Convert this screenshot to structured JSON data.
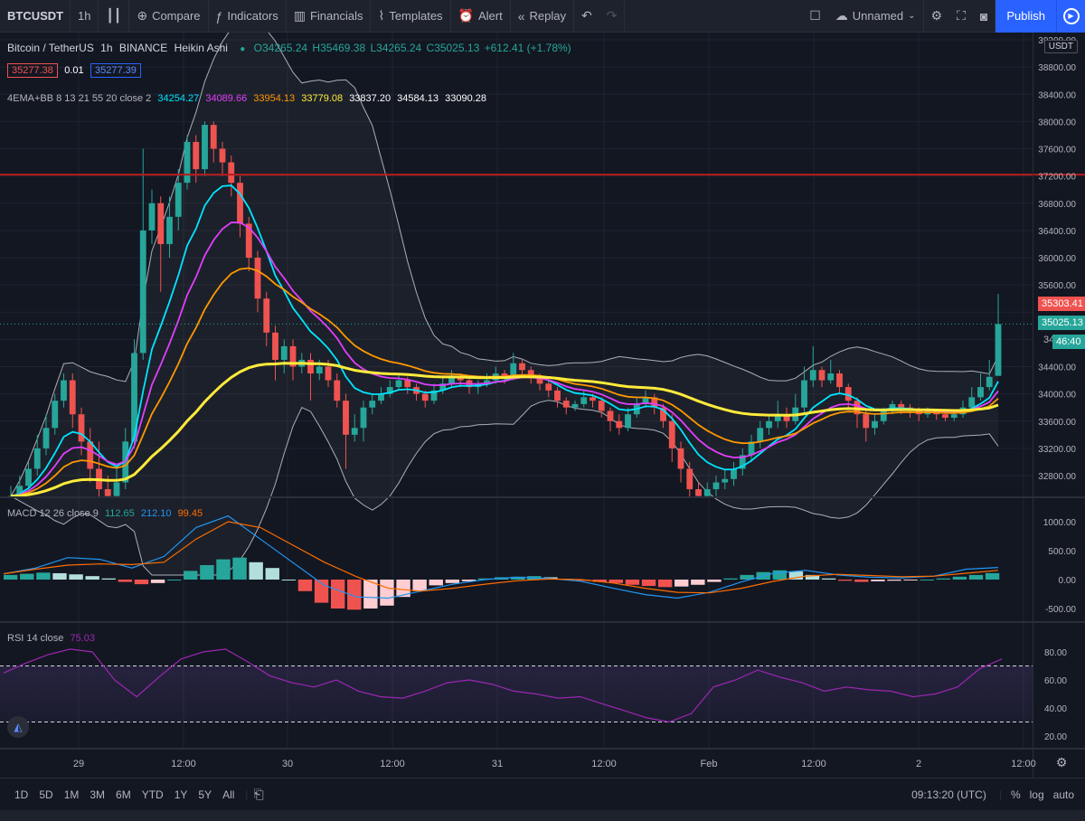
{
  "toolbar": {
    "symbol": "BTCUSDT",
    "interval": "1h",
    "compare": "Compare",
    "indicators": "Indicators",
    "financials": "Financials",
    "templates": "Templates",
    "alert": "Alert",
    "replay": "Replay",
    "layout_name": "Unnamed",
    "publish": "Publish"
  },
  "legend": {
    "title": "Bitcoin / TetherUS",
    "interval": "1h",
    "exchange": "BINANCE",
    "chart_style": "Heikin Ashi",
    "open": "O34265.24",
    "high": "H35469.38",
    "low": "L34265.24",
    "close": "C35025.13",
    "change": "+612.41 (+1.78%)",
    "bid": "35277.38",
    "spread": "0.01",
    "ask": "35277.39",
    "ema_label": "4EMA+BB 8 13 21 55 20 close 2",
    "ema_values": [
      "34254.27",
      "34089.66",
      "33954.13",
      "33779.08",
      "33837.20",
      "34584.13",
      "33090.28"
    ],
    "macd_label": "MACD 12 26 close 9",
    "macd_values": [
      "112.65",
      "212.10",
      "99.45"
    ],
    "rsi_label": "RSI 14 close",
    "rsi_value": "75.03"
  },
  "price_axis": {
    "currency": "USDT",
    "ticks": [
      "39200.00",
      "38800.00",
      "38400.00",
      "38000.00",
      "37600.00",
      "37200.00",
      "36800.00",
      "36400.00",
      "36000.00",
      "35600.00",
      "34400.00",
      "34000.00",
      "33600.00",
      "33200.00",
      "32800.00"
    ],
    "tag_high": "35303.41",
    "tag_last": "35025.13",
    "tag_countdown": "46:40",
    "tag_partial": "34"
  },
  "macd_axis": [
    "1000.00",
    "500.00",
    "0.00",
    "-500.00"
  ],
  "rsi_axis": [
    "80.00",
    "60.00",
    "40.00",
    "20.00"
  ],
  "time_axis": [
    "29",
    "12:00",
    "30",
    "12:00",
    "31",
    "12:00",
    "Feb",
    "12:00",
    "2",
    "12:00"
  ],
  "bottom": {
    "ranges": [
      "1D",
      "5D",
      "1M",
      "3M",
      "6M",
      "YTD",
      "1Y",
      "5Y",
      "All"
    ],
    "clock": "09:13:20 (UTC)",
    "percent": "%",
    "log": "log",
    "auto": "auto"
  },
  "colors": {
    "up": "#26a69a",
    "down": "#ef5350",
    "ema8": "#00e5ff",
    "ema13": "#e040fb",
    "ema21": "#ff9800",
    "ema55": "#ffeb3b",
    "bb": "#d1d4dc",
    "hline": "#b71c1c",
    "macd": "#2196f3",
    "signal": "#ff6d00",
    "rsi": "#9c27b0"
  },
  "chart_data": {
    "type": "candlestick",
    "style": "Heikin Ashi",
    "y_range": [
      32400,
      39200
    ],
    "horizontal_line": 37220,
    "last_price": 35025.13,
    "candles": [
      {
        "o": 32350,
        "c": 32500,
        "h": 32650,
        "l": 32200
      },
      {
        "o": 32500,
        "c": 32650,
        "h": 32800,
        "l": 32400
      },
      {
        "o": 32650,
        "c": 32900,
        "h": 33000,
        "l": 32550
      },
      {
        "o": 32900,
        "c": 33200,
        "h": 33400,
        "l": 32800
      },
      {
        "o": 33200,
        "c": 33500,
        "h": 33700,
        "l": 33100
      },
      {
        "o": 33500,
        "c": 33900,
        "h": 34000,
        "l": 33400
      },
      {
        "o": 33900,
        "c": 34200,
        "h": 34300,
        "l": 33800
      },
      {
        "o": 34200,
        "c": 33700,
        "h": 34300,
        "l": 33500
      },
      {
        "o": 33700,
        "c": 33300,
        "h": 33800,
        "l": 33100
      },
      {
        "o": 33300,
        "c": 32900,
        "h": 33500,
        "l": 32700
      },
      {
        "o": 32900,
        "c": 32600,
        "h": 33300,
        "l": 32400
      },
      {
        "o": 32600,
        "c": 32500,
        "h": 32800,
        "l": 32300
      },
      {
        "o": 32500,
        "c": 32700,
        "h": 32900,
        "l": 32400
      },
      {
        "o": 32700,
        "c": 33300,
        "h": 33500,
        "l": 32600
      },
      {
        "o": 33300,
        "c": 34600,
        "h": 34800,
        "l": 33200
      },
      {
        "o": 34600,
        "c": 36400,
        "h": 37600,
        "l": 34500
      },
      {
        "o": 36400,
        "c": 36800,
        "h": 37000,
        "l": 36200
      },
      {
        "o": 36800,
        "c": 36200,
        "h": 36900,
        "l": 35500
      },
      {
        "o": 36200,
        "c": 36600,
        "h": 36900,
        "l": 36000
      },
      {
        "o": 36600,
        "c": 37100,
        "h": 37300,
        "l": 36400
      },
      {
        "o": 37100,
        "c": 37700,
        "h": 37800,
        "l": 37000
      },
      {
        "o": 37700,
        "c": 37300,
        "h": 37800,
        "l": 37100
      },
      {
        "o": 37300,
        "c": 37950,
        "h": 38000,
        "l": 37200
      },
      {
        "o": 37950,
        "c": 37600,
        "h": 38000,
        "l": 37400
      },
      {
        "o": 37600,
        "c": 37400,
        "h": 37700,
        "l": 37200
      },
      {
        "o": 37400,
        "c": 37100,
        "h": 37500,
        "l": 36900
      },
      {
        "o": 37100,
        "c": 36500,
        "h": 37200,
        "l": 36300
      },
      {
        "o": 36500,
        "c": 36000,
        "h": 36600,
        "l": 35800
      },
      {
        "o": 36000,
        "c": 35400,
        "h": 36100,
        "l": 35200
      },
      {
        "o": 35400,
        "c": 34900,
        "h": 35500,
        "l": 34700
      },
      {
        "o": 34900,
        "c": 34500,
        "h": 35000,
        "l": 34200
      },
      {
        "o": 34500,
        "c": 34700,
        "h": 34800,
        "l": 34300
      },
      {
        "o": 34700,
        "c": 34400,
        "h": 34800,
        "l": 34200
      },
      {
        "o": 34400,
        "c": 34500,
        "h": 34600,
        "l": 34300
      },
      {
        "o": 34500,
        "c": 34300,
        "h": 34600,
        "l": 33900
      },
      {
        "o": 34300,
        "c": 34400,
        "h": 34500,
        "l": 34200
      },
      {
        "o": 34400,
        "c": 34200,
        "h": 34500,
        "l": 34100
      },
      {
        "o": 34200,
        "c": 33900,
        "h": 34300,
        "l": 33800
      },
      {
        "o": 33900,
        "c": 33400,
        "h": 34000,
        "l": 32900
      },
      {
        "o": 33400,
        "c": 33500,
        "h": 33700,
        "l": 33300
      },
      {
        "o": 33500,
        "c": 33800,
        "h": 33900,
        "l": 33300
      },
      {
        "o": 33800,
        "c": 33900,
        "h": 34000,
        "l": 33700
      },
      {
        "o": 33900,
        "c": 34000,
        "h": 34100,
        "l": 33850
      },
      {
        "o": 34000,
        "c": 34100,
        "h": 34200,
        "l": 33950
      },
      {
        "o": 34100,
        "c": 34200,
        "h": 34300,
        "l": 34050
      },
      {
        "o": 34200,
        "c": 34100,
        "h": 34250,
        "l": 34000
      },
      {
        "o": 34100,
        "c": 34000,
        "h": 34150,
        "l": 33900
      },
      {
        "o": 34000,
        "c": 33900,
        "h": 34050,
        "l": 33800
      },
      {
        "o": 33900,
        "c": 34050,
        "h": 34150,
        "l": 33850
      },
      {
        "o": 34050,
        "c": 34150,
        "h": 34250,
        "l": 34000
      },
      {
        "o": 34150,
        "c": 34250,
        "h": 34350,
        "l": 34100
      },
      {
        "o": 34250,
        "c": 34200,
        "h": 34300,
        "l": 34100
      },
      {
        "o": 34200,
        "c": 34100,
        "h": 34250,
        "l": 34000
      },
      {
        "o": 34100,
        "c": 34150,
        "h": 34200,
        "l": 34000
      },
      {
        "o": 34150,
        "c": 34200,
        "h": 34300,
        "l": 34100
      },
      {
        "o": 34200,
        "c": 34300,
        "h": 34400,
        "l": 34150
      },
      {
        "o": 34300,
        "c": 34250,
        "h": 34350,
        "l": 34150
      },
      {
        "o": 34250,
        "c": 34450,
        "h": 34600,
        "l": 34200
      },
      {
        "o": 34450,
        "c": 34350,
        "h": 34500,
        "l": 34250
      },
      {
        "o": 34350,
        "c": 34250,
        "h": 34400,
        "l": 34150
      },
      {
        "o": 34250,
        "c": 34150,
        "h": 34300,
        "l": 34050
      },
      {
        "o": 34150,
        "c": 34050,
        "h": 34200,
        "l": 33950
      },
      {
        "o": 34050,
        "c": 33900,
        "h": 34100,
        "l": 33800
      },
      {
        "o": 33900,
        "c": 33800,
        "h": 33950,
        "l": 33700
      },
      {
        "o": 33800,
        "c": 33850,
        "h": 33900,
        "l": 33750
      },
      {
        "o": 33850,
        "c": 33950,
        "h": 34050,
        "l": 33800
      },
      {
        "o": 33950,
        "c": 33900,
        "h": 34000,
        "l": 33800
      },
      {
        "o": 33900,
        "c": 33750,
        "h": 33950,
        "l": 33650
      },
      {
        "o": 33750,
        "c": 33600,
        "h": 33800,
        "l": 33450
      },
      {
        "o": 33600,
        "c": 33500,
        "h": 33700,
        "l": 33400
      },
      {
        "o": 33500,
        "c": 33700,
        "h": 33800,
        "l": 33450
      },
      {
        "o": 33700,
        "c": 33850,
        "h": 33950,
        "l": 33650
      },
      {
        "o": 33850,
        "c": 33950,
        "h": 34050,
        "l": 33800
      },
      {
        "o": 33950,
        "c": 33800,
        "h": 34000,
        "l": 33700
      },
      {
        "o": 33800,
        "c": 33600,
        "h": 33850,
        "l": 33500
      },
      {
        "o": 33600,
        "c": 33200,
        "h": 33700,
        "l": 33000
      },
      {
        "o": 33200,
        "c": 32900,
        "h": 33300,
        "l": 32700
      },
      {
        "o": 32900,
        "c": 32600,
        "h": 33000,
        "l": 32400
      },
      {
        "o": 32600,
        "c": 32500,
        "h": 32700,
        "l": 32400
      },
      {
        "o": 32500,
        "c": 32600,
        "h": 32700,
        "l": 32450
      },
      {
        "o": 32600,
        "c": 32700,
        "h": 32800,
        "l": 32500
      },
      {
        "o": 32700,
        "c": 32750,
        "h": 32900,
        "l": 32600
      },
      {
        "o": 32750,
        "c": 32900,
        "h": 33000,
        "l": 32650
      },
      {
        "o": 32900,
        "c": 33100,
        "h": 33200,
        "l": 32800
      },
      {
        "o": 33100,
        "c": 33300,
        "h": 33400,
        "l": 33000
      },
      {
        "o": 33300,
        "c": 33500,
        "h": 33600,
        "l": 33200
      },
      {
        "o": 33500,
        "c": 33600,
        "h": 33700,
        "l": 33400
      },
      {
        "o": 33600,
        "c": 33700,
        "h": 33900,
        "l": 33500
      },
      {
        "o": 33700,
        "c": 33600,
        "h": 33800,
        "l": 33500
      },
      {
        "o": 33600,
        "c": 33800,
        "h": 34000,
        "l": 33550
      },
      {
        "o": 33800,
        "c": 34200,
        "h": 34400,
        "l": 33700
      },
      {
        "o": 34200,
        "c": 34350,
        "h": 34700,
        "l": 34100
      },
      {
        "o": 34350,
        "c": 34200,
        "h": 34400,
        "l": 34100
      },
      {
        "o": 34200,
        "c": 34300,
        "h": 34500,
        "l": 34150
      },
      {
        "o": 34300,
        "c": 34100,
        "h": 34350,
        "l": 34000
      },
      {
        "o": 34100,
        "c": 33900,
        "h": 34150,
        "l": 33800
      },
      {
        "o": 33900,
        "c": 33700,
        "h": 33950,
        "l": 33500
      },
      {
        "o": 33700,
        "c": 33500,
        "h": 33750,
        "l": 33300
      },
      {
        "o": 33500,
        "c": 33600,
        "h": 33700,
        "l": 33400
      },
      {
        "o": 33600,
        "c": 33750,
        "h": 33800,
        "l": 33550
      },
      {
        "o": 33750,
        "c": 33850,
        "h": 33900,
        "l": 33700
      },
      {
        "o": 33850,
        "c": 33800,
        "h": 33900,
        "l": 33700
      },
      {
        "o": 33800,
        "c": 33750,
        "h": 33850,
        "l": 33650
      },
      {
        "o": 33750,
        "c": 33700,
        "h": 33800,
        "l": 33600
      },
      {
        "o": 33700,
        "c": 33750,
        "h": 33800,
        "l": 33650
      },
      {
        "o": 33750,
        "c": 33700,
        "h": 33780,
        "l": 33620
      },
      {
        "o": 33700,
        "c": 33650,
        "h": 33750,
        "l": 33600
      },
      {
        "o": 33650,
        "c": 33700,
        "h": 33750,
        "l": 33600
      },
      {
        "o": 33700,
        "c": 33800,
        "h": 33900,
        "l": 33650
      },
      {
        "o": 33800,
        "c": 33950,
        "h": 34100,
        "l": 33750
      },
      {
        "o": 33950,
        "c": 34100,
        "h": 34300,
        "l": 33900
      },
      {
        "o": 34100,
        "c": 34250,
        "h": 34500,
        "l": 34050
      },
      {
        "o": 34265,
        "c": 35025,
        "h": 35469,
        "l": 34265
      }
    ],
    "macd_hist": [
      80,
      100,
      120,
      110,
      90,
      60,
      20,
      -40,
      -80,
      -60,
      0,
      150,
      250,
      350,
      380,
      300,
      200,
      0,
      -200,
      -400,
      -500,
      -520,
      -500,
      -450,
      -300,
      -200,
      -100,
      -60,
      -30,
      20,
      40,
      50,
      60,
      40,
      10,
      -20,
      -40,
      -60,
      -90,
      -110,
      -130,
      -120,
      -90,
      -40,
      20,
      80,
      130,
      160,
      140,
      80,
      20,
      -20,
      -40,
      -30,
      -20,
      -10,
      0,
      20,
      50,
      80,
      112
    ],
    "macd_line": [
      100,
      200,
      380,
      350,
      200,
      400,
      900,
      1100,
      700,
      300,
      -100,
      -300,
      -320,
      -200,
      -80,
      0,
      40,
      20,
      -30,
      -150,
      -260,
      -320,
      -220,
      -40,
      110,
      160,
      80,
      40,
      30,
      60,
      180,
      210
    ],
    "signal_line": [
      100,
      180,
      250,
      270,
      260,
      300,
      700,
      1000,
      900,
      600,
      300,
      50,
      -150,
      -200,
      -150,
      -80,
      -20,
      10,
      0,
      -60,
      -150,
      -220,
      -230,
      -150,
      -30,
      60,
      90,
      70,
      50,
      60,
      110,
      160
    ],
    "rsi": [
      65,
      72,
      78,
      82,
      80,
      60,
      48,
      62,
      75,
      80,
      82,
      73,
      63,
      58,
      55,
      60,
      52,
      48,
      47,
      52,
      58,
      60,
      57,
      52,
      50,
      47,
      48,
      43,
      38,
      33,
      30,
      36,
      55,
      60,
      67,
      62,
      58,
      52,
      55,
      53,
      52,
      48,
      50,
      55,
      68,
      75
    ]
  }
}
